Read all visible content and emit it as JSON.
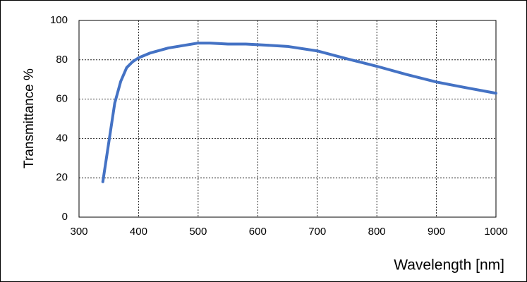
{
  "chart_data": {
    "type": "line",
    "x_label": "Wavelength [nm]",
    "y_label": "Transmittance %",
    "x": [
      340,
      350,
      360,
      370,
      380,
      390,
      400,
      420,
      450,
      500,
      520,
      550,
      580,
      600,
      650,
      700,
      750,
      800,
      850,
      900,
      950,
      1000
    ],
    "values": [
      18,
      38,
      58,
      69,
      76,
      79,
      81,
      83.5,
      86,
      88.5,
      88.5,
      88,
      88,
      87.7,
      86.8,
      84.5,
      80.5,
      76.7,
      72.5,
      68.7,
      65.8,
      63
    ],
    "color": "#4472c4",
    "xlim": [
      300,
      1000
    ],
    "xticks": [
      300,
      400,
      500,
      600,
      700,
      800,
      900,
      1000
    ],
    "ylim": [
      0,
      100
    ],
    "yticks": [
      0,
      20,
      40,
      60,
      80,
      100
    ],
    "grid": true
  }
}
